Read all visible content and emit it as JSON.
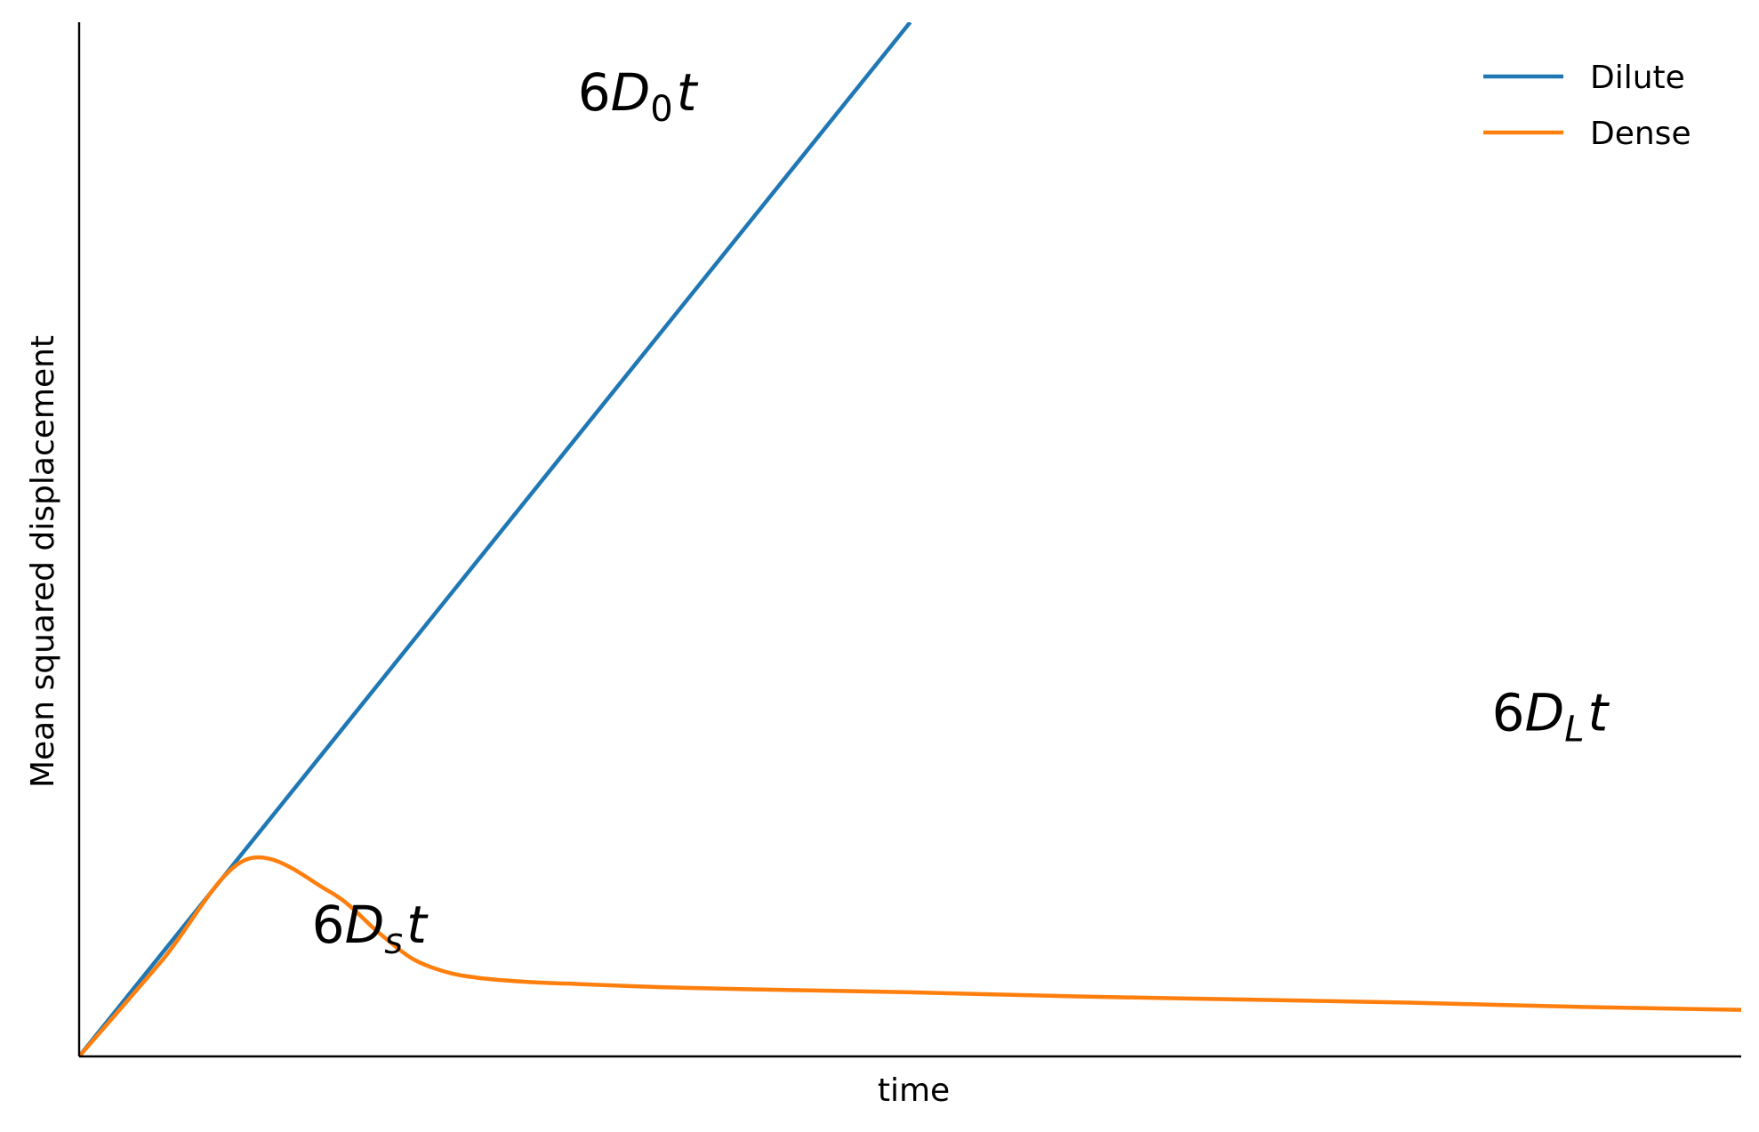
{
  "chart_data": {
    "type": "line",
    "title": "",
    "xlabel": "time",
    "ylabel": "Mean squared displacement",
    "xlim": [
      0,
      10
    ],
    "ylim": [
      0,
      10
    ],
    "grid": false,
    "ticks": false,
    "legend": {
      "placement": "top-right"
    },
    "series": [
      {
        "name": "Dilute",
        "color": "#1f77b4",
        "x": [
          0,
          5
        ],
        "y": [
          0,
          10
        ]
      },
      {
        "name": "Dense",
        "color": "#ff7f0e",
        "x": [
          0,
          0.5,
          1.0,
          1.5,
          1.8,
          2.0,
          2.2,
          2.4,
          2.7,
          3.0,
          3.5,
          4.0,
          5.0,
          6.0,
          7.0,
          8.0,
          9.0,
          10.0
        ],
        "y": [
          0,
          0.93,
          1.9,
          1.6,
          1.2,
          0.95,
          0.82,
          0.76,
          0.72,
          0.7,
          0.67,
          0.65,
          0.62,
          0.58,
          0.55,
          0.52,
          0.48,
          0.45
        ]
      }
    ],
    "annotations": [
      {
        "id": "d0",
        "base": "6",
        "var": "D",
        "sub": "0",
        "tail": "t",
        "x": 3.0,
        "y": 9.15
      },
      {
        "id": "ds",
        "base": "6",
        "var": "D",
        "sub": "s",
        "tail": "t",
        "x": 1.4,
        "y": 1.1
      },
      {
        "id": "dl",
        "base": "6",
        "var": "D",
        "sub": "L",
        "tail": "t",
        "x": 8.5,
        "y": 3.15
      }
    ]
  }
}
